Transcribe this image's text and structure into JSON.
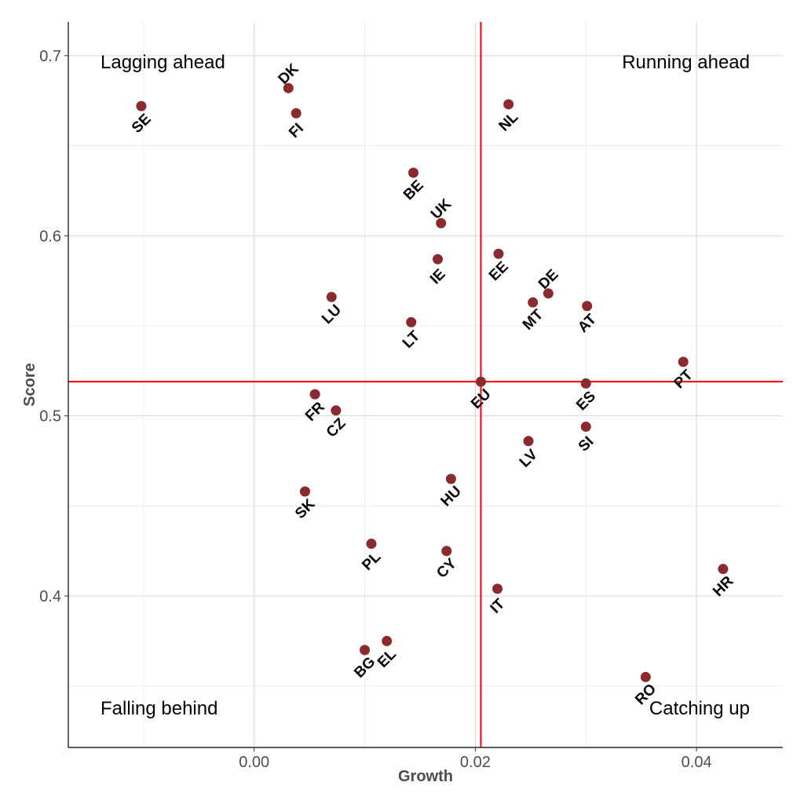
{
  "chart_data": {
    "type": "scatter",
    "xlabel": "Growth",
    "ylabel": "Score",
    "xlim": [
      -0.0168,
      0.0478
    ],
    "ylim": [
      0.3159,
      0.7187
    ],
    "x_ticks": [
      0.0,
      0.02,
      0.04
    ],
    "x_tick_labels": [
      "0.00",
      "0.02",
      "0.04"
    ],
    "y_ticks": [
      0.4,
      0.5,
      0.6,
      0.7
    ],
    "y_tick_labels": [
      "0.4",
      "0.5",
      "0.6",
      "0.7"
    ],
    "grid": true,
    "point_color": "#8B2A2E",
    "reference_line_color": "#FF0000",
    "reference_lines": {
      "x": 0.0205,
      "y": 0.519
    },
    "quadrant_labels": {
      "top_left": "Lagging ahead",
      "top_right": "Running ahead",
      "bottom_left": "Falling behind",
      "bottom_right": "Catching up"
    },
    "points": [
      {
        "label": "SE",
        "x": -0.0102,
        "y": 0.672,
        "side": "below"
      },
      {
        "label": "DK",
        "x": 0.0031,
        "y": 0.682,
        "side": "above"
      },
      {
        "label": "FI",
        "x": 0.0038,
        "y": 0.668,
        "side": "below"
      },
      {
        "label": "NL",
        "x": 0.023,
        "y": 0.673,
        "side": "below"
      },
      {
        "label": "BE",
        "x": 0.0144,
        "y": 0.635,
        "side": "below"
      },
      {
        "label": "UK",
        "x": 0.0169,
        "y": 0.607,
        "side": "above"
      },
      {
        "label": "IE",
        "x": 0.0166,
        "y": 0.587,
        "side": "below"
      },
      {
        "label": "EE",
        "x": 0.0221,
        "y": 0.59,
        "side": "below"
      },
      {
        "label": "DE",
        "x": 0.0266,
        "y": 0.568,
        "side": "above"
      },
      {
        "label": "MT",
        "x": 0.0252,
        "y": 0.563,
        "side": "below"
      },
      {
        "label": "LU",
        "x": 0.007,
        "y": 0.566,
        "side": "below"
      },
      {
        "label": "AT",
        "x": 0.0301,
        "y": 0.561,
        "side": "below"
      },
      {
        "label": "LT",
        "x": 0.0142,
        "y": 0.552,
        "side": "below"
      },
      {
        "label": "PT",
        "x": 0.0388,
        "y": 0.53,
        "side": "below"
      },
      {
        "label": "EU",
        "x": 0.0205,
        "y": 0.519,
        "side": "below"
      },
      {
        "label": "ES",
        "x": 0.03,
        "y": 0.518,
        "side": "below"
      },
      {
        "label": "FR",
        "x": 0.0055,
        "y": 0.512,
        "side": "below"
      },
      {
        "label": "CZ",
        "x": 0.0074,
        "y": 0.503,
        "side": "below"
      },
      {
        "label": "SI",
        "x": 0.03,
        "y": 0.494,
        "side": "below"
      },
      {
        "label": "LV",
        "x": 0.0248,
        "y": 0.486,
        "side": "below"
      },
      {
        "label": "HU",
        "x": 0.0178,
        "y": 0.465,
        "side": "below"
      },
      {
        "label": "SK",
        "x": 0.0046,
        "y": 0.458,
        "side": "below"
      },
      {
        "label": "PL",
        "x": 0.0106,
        "y": 0.429,
        "side": "below"
      },
      {
        "label": "CY",
        "x": 0.0174,
        "y": 0.425,
        "side": "below"
      },
      {
        "label": "HR",
        "x": 0.0424,
        "y": 0.415,
        "side": "below"
      },
      {
        "label": "IT",
        "x": 0.022,
        "y": 0.404,
        "side": "below"
      },
      {
        "label": "EL",
        "x": 0.012,
        "y": 0.375,
        "side": "below"
      },
      {
        "label": "BG",
        "x": 0.01,
        "y": 0.37,
        "side": "below"
      },
      {
        "label": "RO",
        "x": 0.0354,
        "y": 0.355,
        "side": "below"
      }
    ]
  }
}
